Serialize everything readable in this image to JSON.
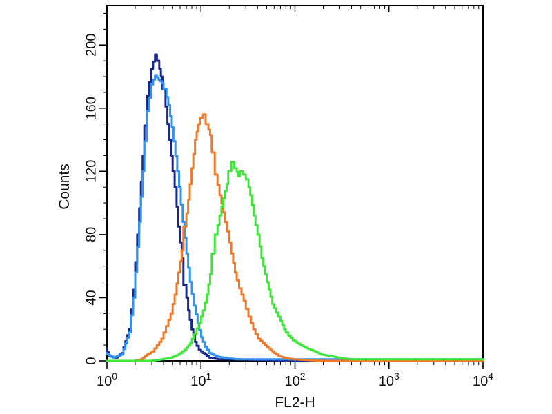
{
  "chart_data": {
    "type": "line",
    "title": "",
    "xlabel": "FL2-H",
    "ylabel": "Counts",
    "xscale": "log",
    "xlim": [
      1,
      10000
    ],
    "ylim": [
      0,
      225
    ],
    "grid": false,
    "legend": "none",
    "x_ticks": [
      {
        "base": "10",
        "exp": "0"
      },
      {
        "base": "10",
        "exp": "1"
      },
      {
        "base": "10",
        "exp": "2"
      },
      {
        "base": "10",
        "exp": "3"
      },
      {
        "base": "10",
        "exp": "4"
      }
    ],
    "y_ticks": [
      0,
      40,
      80,
      120,
      160,
      200
    ],
    "series": [
      {
        "color": "#1a2a8c",
        "points": [
          [
            1,
            8
          ],
          [
            1.1,
            3
          ],
          [
            1.3,
            2
          ],
          [
            1.5,
            5
          ],
          [
            1.8,
            20
          ],
          [
            2.0,
            45
          ],
          [
            2.2,
            80
          ],
          [
            2.5,
            130
          ],
          [
            2.8,
            168
          ],
          [
            3.1,
            185
          ],
          [
            3.4,
            194
          ],
          [
            3.6,
            190
          ],
          [
            3.9,
            180
          ],
          [
            4.2,
            172
          ],
          [
            4.6,
            150
          ],
          [
            5.0,
            130
          ],
          [
            5.5,
            110
          ],
          [
            6.0,
            85
          ],
          [
            6.5,
            65
          ],
          [
            7.0,
            48
          ],
          [
            7.6,
            32
          ],
          [
            8.3,
            20
          ],
          [
            9.0,
            12
          ],
          [
            10,
            7
          ],
          [
            11.5,
            4
          ],
          [
            13,
            2
          ],
          [
            16,
            1
          ],
          [
            25,
            1
          ],
          [
            100,
            0
          ],
          [
            10000,
            0
          ]
        ]
      },
      {
        "color": "#2f93f0",
        "points": [
          [
            1,
            5
          ],
          [
            1.2,
            2
          ],
          [
            1.5,
            4
          ],
          [
            1.8,
            18
          ],
          [
            2.0,
            40
          ],
          [
            2.2,
            72
          ],
          [
            2.5,
            120
          ],
          [
            2.8,
            158
          ],
          [
            3.1,
            175
          ],
          [
            3.4,
            181
          ],
          [
            3.7,
            178
          ],
          [
            4.0,
            176
          ],
          [
            4.3,
            172
          ],
          [
            4.7,
            162
          ],
          [
            5.1,
            148
          ],
          [
            5.6,
            130
          ],
          [
            6.1,
            110
          ],
          [
            6.7,
            88
          ],
          [
            7.3,
            68
          ],
          [
            8.0,
            50
          ],
          [
            8.8,
            35
          ],
          [
            9.6,
            24
          ],
          [
            10.5,
            15
          ],
          [
            11.5,
            9
          ],
          [
            13,
            5
          ],
          [
            15,
            3
          ],
          [
            18,
            2
          ],
          [
            25,
            1
          ],
          [
            40,
            1
          ],
          [
            100,
            1
          ],
          [
            10000,
            1
          ]
        ]
      },
      {
        "color": "#f07a2a",
        "points": [
          [
            1,
            0
          ],
          [
            2.0,
            0
          ],
          [
            2.4,
            1
          ],
          [
            2.8,
            4
          ],
          [
            3.2,
            6
          ],
          [
            3.6,
            10
          ],
          [
            4.0,
            14
          ],
          [
            4.5,
            22
          ],
          [
            5.0,
            30
          ],
          [
            5.5,
            42
          ],
          [
            6.0,
            56
          ],
          [
            6.5,
            70
          ],
          [
            7.0,
            85
          ],
          [
            7.6,
            102
          ],
          [
            8.3,
            122
          ],
          [
            9.0,
            140
          ],
          [
            9.8,
            150
          ],
          [
            10.5,
            154
          ],
          [
            11.2,
            156
          ],
          [
            12,
            150
          ],
          [
            13,
            143
          ],
          [
            14,
            132
          ],
          [
            15,
            118
          ],
          [
            16.5,
            105
          ],
          [
            18,
            94
          ],
          [
            20,
            82
          ],
          [
            22,
            68
          ],
          [
            24,
            56
          ],
          [
            27,
            46
          ],
          [
            30,
            38
          ],
          [
            34,
            28
          ],
          [
            38,
            20
          ],
          [
            43,
            14
          ],
          [
            50,
            10
          ],
          [
            60,
            6
          ],
          [
            70,
            3
          ],
          [
            80,
            2
          ],
          [
            100,
            1
          ],
          [
            200,
            0
          ],
          [
            10000,
            0
          ]
        ]
      },
      {
        "color": "#3ee63a",
        "points": [
          [
            1,
            0
          ],
          [
            3,
            0
          ],
          [
            4,
            1
          ],
          [
            5,
            2
          ],
          [
            6,
            4
          ],
          [
            7,
            7
          ],
          [
            8,
            11
          ],
          [
            9,
            17
          ],
          [
            10,
            24
          ],
          [
            11,
            32
          ],
          [
            12,
            42
          ],
          [
            13,
            55
          ],
          [
            14,
            68
          ],
          [
            15,
            80
          ],
          [
            16.5,
            92
          ],
          [
            18,
            103
          ],
          [
            19.5,
            112
          ],
          [
            21,
            120
          ],
          [
            22.5,
            126
          ],
          [
            24,
            122
          ],
          [
            26,
            117
          ],
          [
            28,
            120
          ],
          [
            30,
            118
          ],
          [
            32,
            115
          ],
          [
            35,
            105
          ],
          [
            38,
            92
          ],
          [
            42,
            80
          ],
          [
            46,
            65
          ],
          [
            50,
            55
          ],
          [
            55,
            45
          ],
          [
            60,
            36
          ],
          [
            70,
            28
          ],
          [
            80,
            20
          ],
          [
            90,
            16
          ],
          [
            100,
            13
          ],
          [
            120,
            10
          ],
          [
            140,
            8
          ],
          [
            170,
            6
          ],
          [
            200,
            4
          ],
          [
            250,
            3
          ],
          [
            300,
            2
          ],
          [
            400,
            1
          ],
          [
            500,
            1
          ],
          [
            1000,
            1
          ],
          [
            10000,
            1
          ]
        ]
      }
    ]
  }
}
